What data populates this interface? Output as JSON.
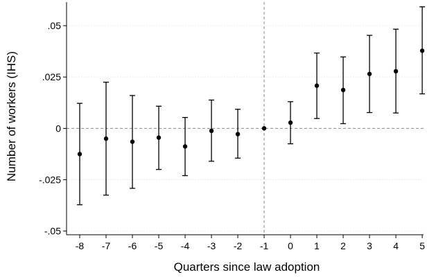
{
  "chart_data": {
    "type": "scatter",
    "subtype": "coefficient plot with confidence intervals",
    "title": "",
    "xlabel": "Quarters since law adoption",
    "ylabel": "Number of workers (IHS)",
    "x": [
      -8,
      -7,
      -6,
      -5,
      -4,
      -3,
      -2,
      -1,
      0,
      1,
      2,
      3,
      4,
      5
    ],
    "x_tick_labels": [
      "-8",
      "-7",
      "-6",
      "-5",
      "-4",
      "-3",
      "-2",
      "-1",
      "0",
      "1",
      "2",
      "3",
      "4",
      "5"
    ],
    "y_ticks": [
      -0.05,
      -0.025,
      0,
      0.025,
      0.05
    ],
    "y_tick_labels": [
      "-.05",
      "-.025",
      "0",
      ".025",
      ".05"
    ],
    "xlim": [
      -8.5,
      5.05
    ],
    "ylim": [
      -0.0518,
      0.0615
    ],
    "series": [
      {
        "estimate": [
          -0.0125,
          -0.005,
          -0.0065,
          -0.0045,
          -0.0088,
          -0.0012,
          -0.0028,
          0.0,
          0.0028,
          0.0208,
          0.0187,
          0.0265,
          0.0278,
          0.0378
        ],
        "ci_low": [
          -0.0372,
          -0.0325,
          -0.0292,
          -0.02,
          -0.023,
          -0.016,
          -0.0145,
          0.0,
          -0.0075,
          0.0048,
          0.0023,
          0.0077,
          0.0075,
          0.0168
        ],
        "ci_high": [
          0.0122,
          0.0225,
          0.016,
          0.0108,
          0.0053,
          0.0138,
          0.0093,
          0.0,
          0.013,
          0.0367,
          0.0348,
          0.0453,
          0.0483,
          0.0592
        ]
      }
    ],
    "reference_lines": {
      "horizontal_y": 0,
      "vertical_x": -1,
      "style": "dashed"
    },
    "grid": {
      "horizontal": true,
      "style": "dotted"
    },
    "colors": {
      "marker": "#000000",
      "errorbar": "#000000",
      "grid": "#e6e6e6",
      "reference": "#888888",
      "background": "#ffffff"
    }
  }
}
